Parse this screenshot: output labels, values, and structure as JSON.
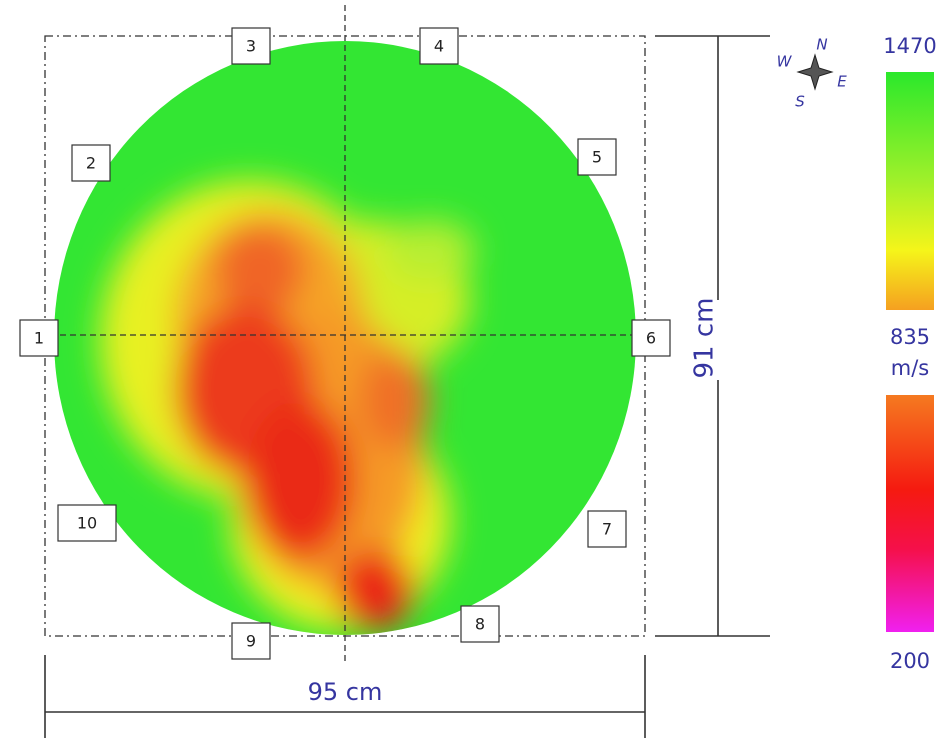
{
  "sensors": [
    "1",
    "2",
    "3",
    "4",
    "5",
    "6",
    "7",
    "8",
    "9",
    "10"
  ],
  "dimensions": {
    "width": "95 cm",
    "height": "91 cm"
  },
  "compass": {
    "north": "N",
    "east": "E",
    "south": "S",
    "west": "W"
  },
  "color_scale": {
    "max": "1470",
    "mid": "835",
    "unit": "m/s",
    "min": "200"
  }
}
